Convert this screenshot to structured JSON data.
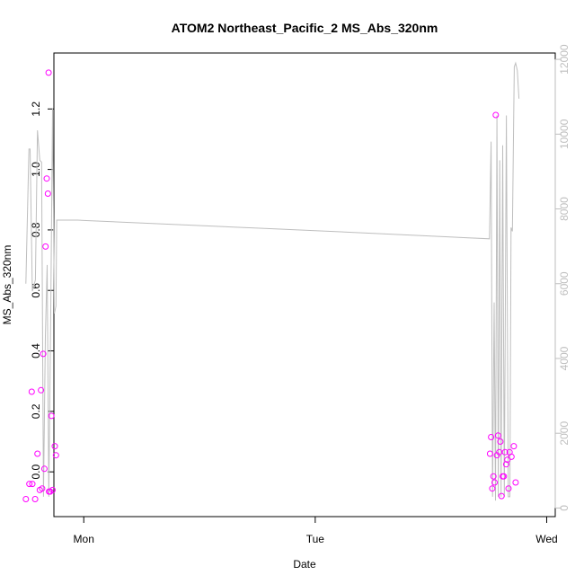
{
  "chart_data": {
    "type": "scatter",
    "title": "ATOM2 Northeast_Pacific_2 MS_Abs_320nm",
    "xlabel": "Date",
    "ylabel": "MS_Abs_320nm",
    "xlim": [
      -0.129,
      2.037
    ],
    "ylim": [
      -0.148,
      1.385
    ],
    "y2lim": [
      -230,
      12170
    ],
    "x_ticks": [
      {
        "value": 0,
        "label": "Mon"
      },
      {
        "value": 1,
        "label": "Tue"
      },
      {
        "value": 2,
        "label": "Wed"
      }
    ],
    "y_ticks": [
      {
        "value": 0.0,
        "label": "0.0"
      },
      {
        "value": 0.2,
        "label": "0.2"
      },
      {
        "value": 0.4,
        "label": "0.4"
      },
      {
        "value": 0.6,
        "label": "0.6"
      },
      {
        "value": 0.8,
        "label": "0.8"
      },
      {
        "value": 1.0,
        "label": "1.0"
      },
      {
        "value": 1.2,
        "label": "1.2"
      }
    ],
    "y2_ticks": [
      {
        "value": 0,
        "label": "0"
      },
      {
        "value": 2000,
        "label": "2000"
      },
      {
        "value": 4000,
        "label": "4000"
      },
      {
        "value": 6000,
        "label": "6000"
      },
      {
        "value": 8000,
        "label": "8000"
      },
      {
        "value": 10000,
        "label": "10000"
      },
      {
        "value": 12000,
        "label": "12000"
      }
    ],
    "grid": false,
    "legend": "none",
    "colors": {
      "points": "#ff00ff",
      "altitude_line": "#bebebe",
      "axis": "#000000"
    },
    "series": [
      {
        "axis": "left",
        "style": "points",
        "points": [
          [
            -0.25,
            -0.09
          ],
          [
            -0.235,
            -0.04
          ],
          [
            -0.225,
            0.265
          ],
          [
            -0.222,
            -0.04
          ],
          [
            -0.21,
            -0.09
          ],
          [
            -0.2,
            0.06
          ],
          [
            -0.19,
            -0.06
          ],
          [
            -0.185,
            0.27
          ],
          [
            -0.18,
            -0.055
          ],
          [
            -0.175,
            0.39
          ],
          [
            -0.17,
            0.01
          ],
          [
            -0.165,
            0.745
          ],
          [
            -0.16,
            0.97
          ],
          [
            -0.155,
            0.92
          ],
          [
            -0.152,
            1.32
          ],
          [
            -0.15,
            -0.065
          ],
          [
            -0.145,
            -0.065
          ],
          [
            -0.14,
            0.185
          ],
          [
            -0.135,
            -0.06
          ],
          [
            -0.125,
            0.085
          ],
          [
            -0.12,
            0.055
          ],
          [
            1.755,
            0.06
          ],
          [
            1.76,
            0.115
          ],
          [
            1.765,
            -0.055
          ],
          [
            1.77,
            -0.015
          ],
          [
            1.775,
            -0.035
          ],
          [
            1.78,
            1.18
          ],
          [
            1.785,
            0.055
          ],
          [
            1.79,
            0.12
          ],
          [
            1.795,
            0.065
          ],
          [
            1.8,
            0.1
          ],
          [
            1.805,
            -0.08
          ],
          [
            1.81,
            -0.015
          ],
          [
            1.815,
            -0.015
          ],
          [
            1.82,
            0.065
          ],
          [
            1.825,
            0.025
          ],
          [
            1.83,
            0.04
          ],
          [
            1.835,
            -0.055
          ],
          [
            1.84,
            0.065
          ],
          [
            1.848,
            0.05
          ],
          [
            1.858,
            0.085
          ],
          [
            1.866,
            -0.035
          ]
        ]
      },
      {
        "axis": "right",
        "style": "line",
        "points": [
          [
            -0.25,
            6000
          ],
          [
            -0.237,
            9600
          ],
          [
            -0.232,
            9600
          ],
          [
            -0.222,
            5800
          ],
          [
            -0.209,
            6100
          ],
          [
            -0.2,
            10100
          ],
          [
            -0.19,
            9300
          ],
          [
            -0.182,
            9250
          ],
          [
            -0.174,
            300
          ],
          [
            -0.166,
            4600
          ],
          [
            -0.158,
            6500
          ],
          [
            -0.151,
            300
          ],
          [
            -0.143,
            5000
          ],
          [
            -0.135,
            10700
          ],
          [
            -0.127,
            5200
          ],
          [
            -0.12,
            5400
          ],
          [
            -0.117,
            7700
          ],
          [
            -0.025,
            7700
          ],
          [
            0.0,
            7690
          ],
          [
            1.0,
            7420
          ],
          [
            1.753,
            7200
          ],
          [
            1.76,
            9800
          ],
          [
            1.766,
            300
          ],
          [
            1.773,
            5500
          ],
          [
            1.779,
            200
          ],
          [
            1.785,
            10500
          ],
          [
            1.791,
            300
          ],
          [
            1.797,
            9300
          ],
          [
            1.803,
            300
          ],
          [
            1.81,
            9700
          ],
          [
            1.817,
            300
          ],
          [
            1.826,
            10500
          ],
          [
            1.834,
            300
          ],
          [
            1.841,
            300
          ],
          [
            1.846,
            7500
          ],
          [
            1.852,
            7400
          ],
          [
            1.86,
            11800
          ],
          [
            1.866,
            11900
          ],
          [
            1.873,
            11700
          ],
          [
            1.88,
            10950
          ]
        ]
      }
    ]
  }
}
